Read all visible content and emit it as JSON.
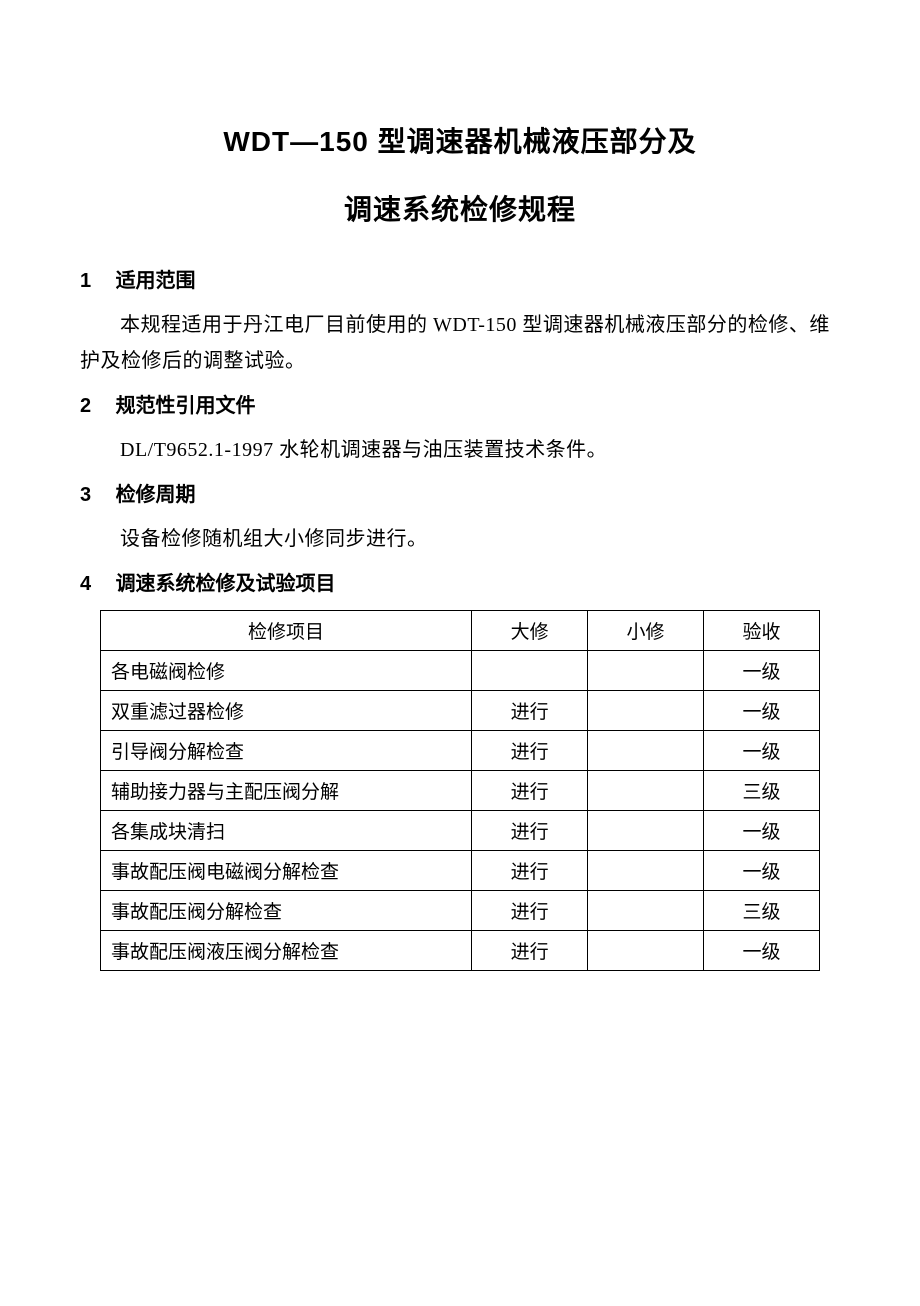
{
  "title": {
    "line1": "WDT—150 型调速器机械液压部分及",
    "line2": "调速系统检修规程"
  },
  "sections": {
    "s1": {
      "num": "1",
      "heading": "适用范围",
      "body": "本规程适用于丹江电厂目前使用的 WDT-150 型调速器机械液压部分的检修、维护及检修后的调整试验。"
    },
    "s2": {
      "num": "2",
      "heading": "规范性引用文件",
      "body": "DL/T9652.1-1997   水轮机调速器与油压装置技术条件。"
    },
    "s3": {
      "num": "3",
      "heading": "检修周期",
      "body": "设备检修随机组大小修同步进行。"
    },
    "s4": {
      "num": "4",
      "heading": "调速系统检修及试验项目"
    }
  },
  "table": {
    "headers": {
      "item": "检修项目",
      "major": "大修",
      "minor": "小修",
      "accept": "验收"
    },
    "rows": [
      {
        "item": "各电磁阀检修",
        "major": "",
        "minor": "",
        "accept": "一级"
      },
      {
        "item": "双重滤过器检修",
        "major": "进行",
        "minor": "",
        "accept": "一级"
      },
      {
        "item": "引导阀分解检查",
        "major": "进行",
        "minor": "",
        "accept": "一级"
      },
      {
        "item": "辅助接力器与主配压阀分解",
        "major": "进行",
        "minor": "",
        "accept": "三级"
      },
      {
        "item": "各集成块清扫",
        "major": "进行",
        "minor": "",
        "accept": "一级"
      },
      {
        "item": "事故配压阀电磁阀分解检查",
        "major": "进行",
        "minor": "",
        "accept": "一级"
      },
      {
        "item": "事故配压阀分解检查",
        "major": "进行",
        "minor": "",
        "accept": "三级"
      },
      {
        "item": "事故配压阀液压阀分解检查",
        "major": "进行",
        "minor": "",
        "accept": "一级"
      }
    ]
  },
  "style": {
    "background_color": "#ffffff",
    "text_color": "#000000",
    "border_color": "#000000",
    "title_fontsize": 28,
    "heading_fontsize": 20,
    "body_fontsize": 20,
    "table_fontsize": 19
  }
}
